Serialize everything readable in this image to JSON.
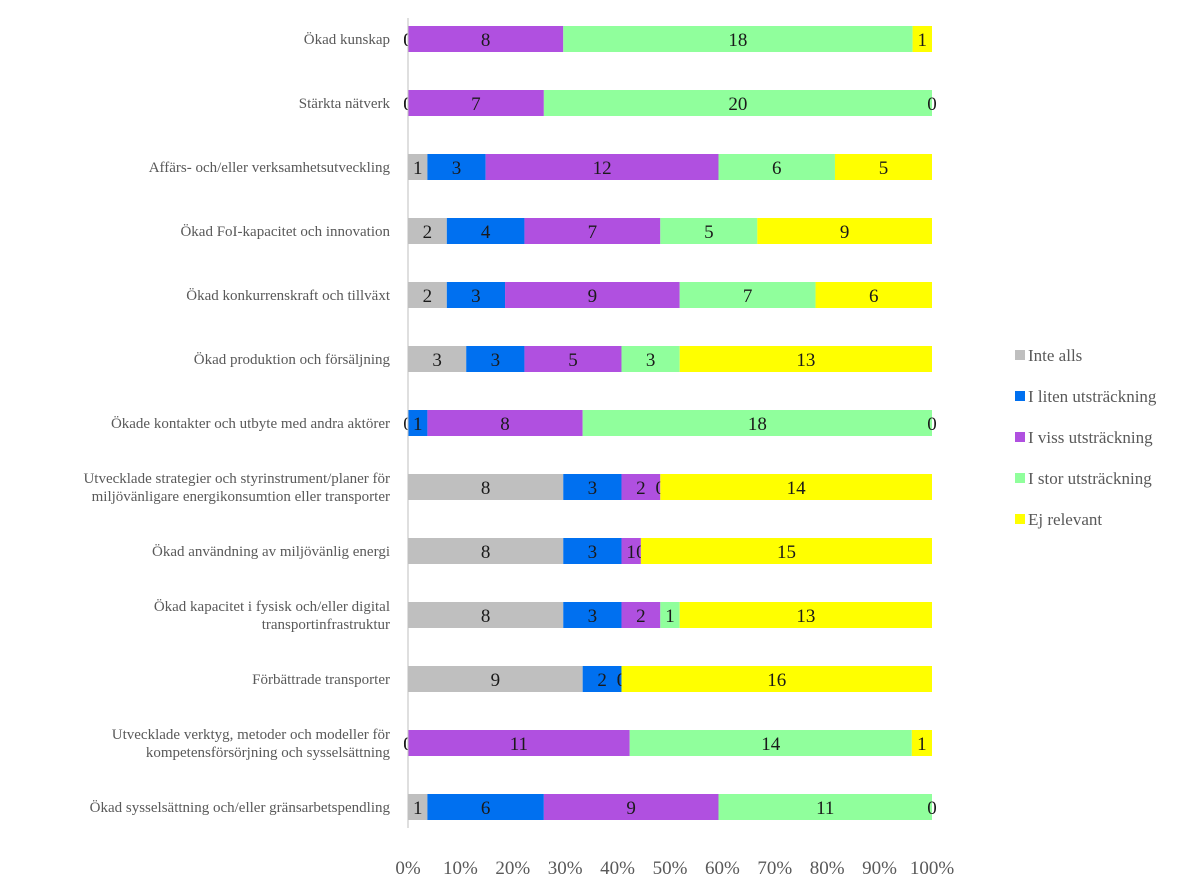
{
  "chart_data": {
    "type": "bar",
    "orientation": "horizontal",
    "stacked": "percent",
    "categories": [
      [
        "Ökad kunskap"
      ],
      [
        "Stärkta nätverk"
      ],
      [
        "Affärs- och/eller verksamhetsutveckling"
      ],
      [
        "Ökad FoI-kapacitet och innovation"
      ],
      [
        "Ökad konkurrenskraft och tillväxt"
      ],
      [
        "Ökad produktion och försäljning"
      ],
      [
        "Ökade kontakter och utbyte med andra aktörer"
      ],
      [
        "Utvecklade strategier och styrinstrument/planer för",
        "miljövänligare energikonsumtion eller transporter"
      ],
      [
        "Ökad användning av miljövänlig energi"
      ],
      [
        "Ökad kapacitet i fysisk och/eller digital",
        "transportinfrastruktur"
      ],
      [
        "Förbättrade transporter"
      ],
      [
        "Utvecklade verktyg, metoder och modeller för",
        "kompetensförsörjning och sysselsättning"
      ],
      [
        "Ökad sysselsättning och/eller gränsarbetspendling"
      ]
    ],
    "series": [
      {
        "name": "Inte alls",
        "color": "#bfbfbf",
        "values": [
          0,
          0,
          1,
          2,
          2,
          3,
          0,
          8,
          8,
          8,
          9,
          0,
          1
        ]
      },
      {
        "name": "I liten utsträckning",
        "color": "#0070f0",
        "values": [
          0,
          0,
          3,
          4,
          3,
          3,
          1,
          3,
          3,
          3,
          2,
          0,
          6
        ]
      },
      {
        "name": "I viss utsträckning",
        "color": "#b050e0",
        "values": [
          8,
          7,
          12,
          7,
          9,
          5,
          8,
          2,
          1,
          2,
          0,
          11,
          9
        ]
      },
      {
        "name": "I stor utsträckning",
        "color": "#90ff9c",
        "values": [
          18,
          20,
          6,
          5,
          7,
          3,
          18,
          0,
          0,
          1,
          0,
          14,
          11
        ]
      },
      {
        "name": "Ej relevant",
        "color": "#ffff00",
        "values": [
          1,
          0,
          5,
          9,
          6,
          13,
          0,
          14,
          15,
          13,
          16,
          1,
          0
        ]
      }
    ],
    "xticks": [
      "0%",
      "10%",
      "20%",
      "30%",
      "40%",
      "50%",
      "60%",
      "70%",
      "80%",
      "90%",
      "100%"
    ],
    "xlim": [
      0,
      100
    ],
    "grid": false,
    "legend": "right"
  }
}
